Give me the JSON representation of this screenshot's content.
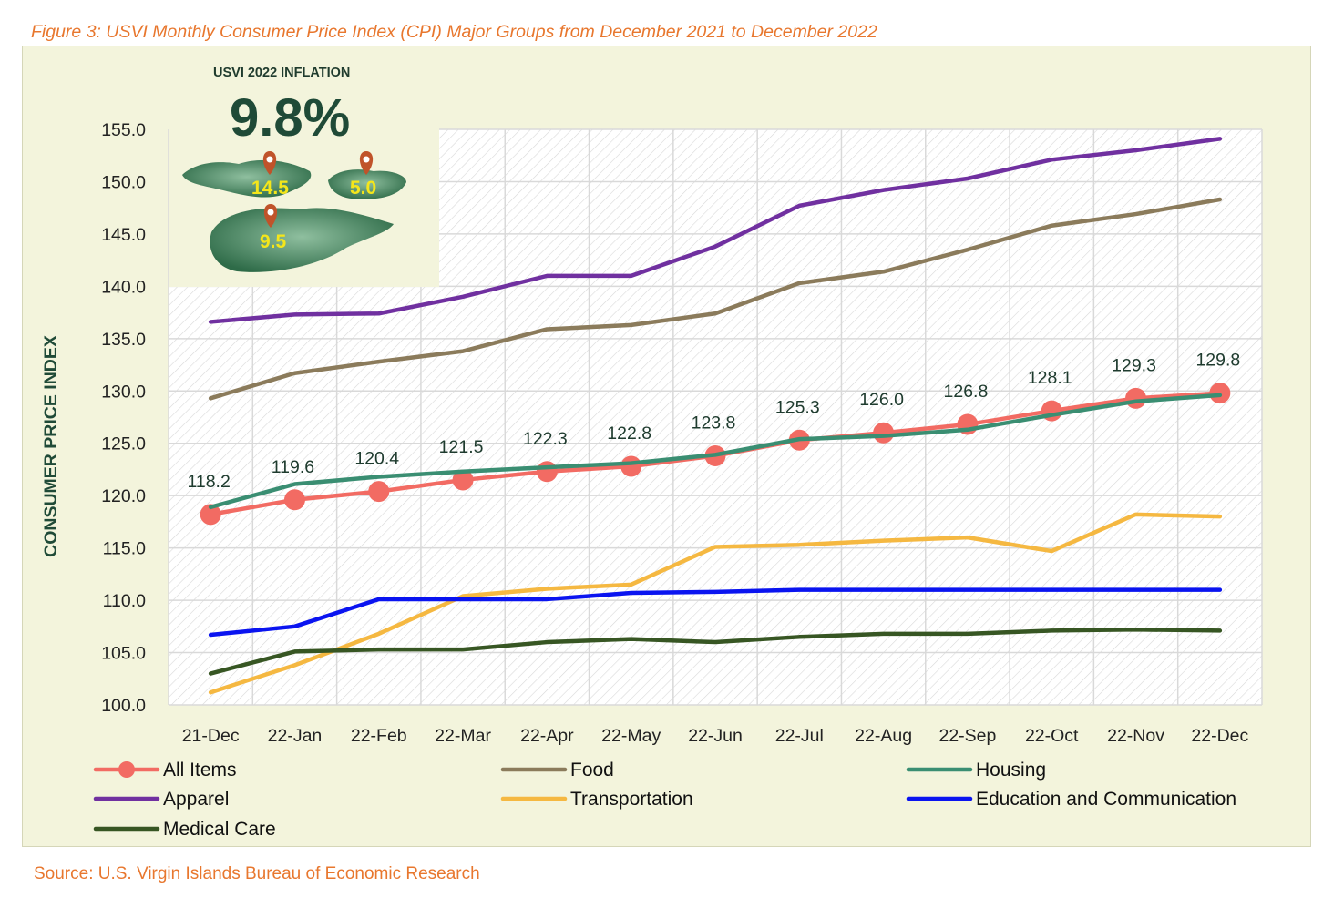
{
  "figure_title": "Figure 3: USVI Monthly Consumer Price Index (CPI) Major Groups from December 2021 to December 2022",
  "source": "Source: U.S. Virgin Islands Bureau of Economic Research",
  "inset": {
    "label": "USVI 2022 INFLATION",
    "headline": "9.8%",
    "islands": [
      {
        "name": "st-thomas",
        "value": "14.5"
      },
      {
        "name": "st-john",
        "value": "5.0"
      },
      {
        "name": "st-croix",
        "value": "9.5"
      }
    ],
    "pin_color": "#C0532A",
    "island_color": "#3E7A55"
  },
  "chart_data": {
    "type": "line",
    "ylabel": "CONSUMER PRICE INDEX",
    "xlabel": "",
    "ylim": [
      100,
      155
    ],
    "yticks": [
      "100.0",
      "105.0",
      "110.0",
      "115.0",
      "120.0",
      "125.0",
      "130.0",
      "135.0",
      "140.0",
      "145.0",
      "150.0",
      "155.0"
    ],
    "categories": [
      "21-Dec",
      "22-Jan",
      "22-Feb",
      "22-Mar",
      "22-Apr",
      "22-May",
      "22-Jun",
      "22-Jul",
      "22-Aug",
      "22-Sep",
      "22-Oct",
      "22-Nov",
      "22-Dec"
    ],
    "grid": true,
    "legend_position": "bottom",
    "series": [
      {
        "name": "Apparel",
        "color": "#7030A0",
        "values": [
          136.6,
          137.3,
          137.4,
          139.0,
          141.0,
          141.0,
          143.8,
          147.7,
          149.2,
          150.3,
          152.1,
          153.0,
          154.1
        ]
      },
      {
        "name": "Food",
        "color": "#8B7B5B",
        "values": [
          129.3,
          131.7,
          132.8,
          133.8,
          135.9,
          136.3,
          137.4,
          140.3,
          141.4,
          143.5,
          145.8,
          146.9,
          148.3
        ]
      },
      {
        "name": "Transportation",
        "color": "#F5B841",
        "values": [
          101.2,
          103.8,
          106.8,
          110.4,
          111.1,
          111.5,
          115.1,
          115.3,
          115.7,
          116.0,
          114.7,
          118.2,
          118.0
        ]
      },
      {
        "name": "Education and Communication",
        "color": "#0A14F0",
        "values": [
          106.7,
          107.5,
          110.1,
          110.1,
          110.1,
          110.7,
          110.8,
          111.0,
          111.0,
          111.0,
          111.0,
          111.0,
          111.0
        ]
      },
      {
        "name": "Medical Care",
        "color": "#375623",
        "values": [
          103.0,
          105.1,
          105.3,
          105.3,
          106.0,
          106.3,
          106.0,
          106.5,
          106.8,
          106.8,
          107.1,
          107.2,
          107.1
        ]
      },
      {
        "name": "All Items",
        "color": "#F26B63",
        "markers": true,
        "values": [
          118.2,
          119.6,
          120.4,
          121.5,
          122.3,
          122.8,
          123.8,
          125.3,
          126.0,
          126.8,
          128.1,
          129.3,
          129.8
        ],
        "labels": [
          "118.2",
          "119.6",
          "120.4",
          "121.5",
          "122.3",
          "122.8",
          "123.8",
          "125.3",
          "126.0",
          "126.8",
          "128.1",
          "129.3",
          "129.8"
        ]
      },
      {
        "name": "Housing",
        "color": "#3A8E72",
        "values": [
          118.9,
          121.1,
          121.8,
          122.3,
          122.7,
          123.1,
          123.9,
          125.4,
          125.7,
          126.3,
          127.7,
          129.0,
          129.6
        ]
      }
    ],
    "legend": [
      [
        "All Items",
        "Food",
        "Housing"
      ],
      [
        "Apparel",
        "Transportation",
        "Education and Communication"
      ],
      [
        "Medical Care"
      ]
    ]
  }
}
